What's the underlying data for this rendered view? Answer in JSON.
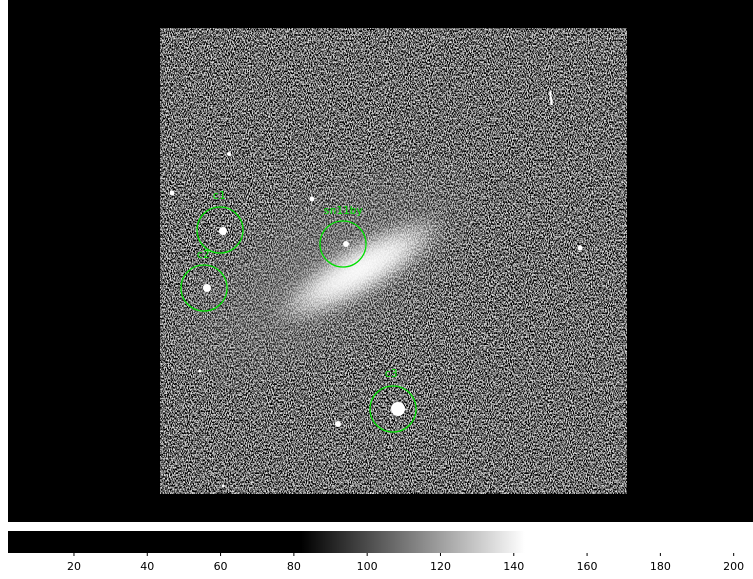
{
  "regions": [
    {
      "label": "c1"
    },
    {
      "label": "c2"
    },
    {
      "label": "sn11by"
    },
    {
      "label": "c3"
    }
  ],
  "colorbar": {
    "lim": [
      2,
      205
    ],
    "ticks": [
      20,
      40,
      60,
      80,
      100,
      120,
      140,
      160,
      180,
      200
    ],
    "gradient": [
      82,
      143
    ]
  }
}
